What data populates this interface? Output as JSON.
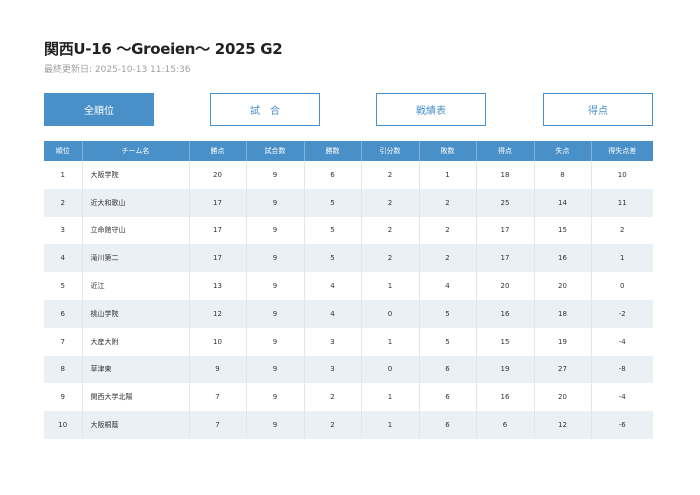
{
  "header": {
    "title": "関西U-16 〜Groeien〜 2025 G2",
    "updated": "最終更新日: 2025-10-13 11:15:36"
  },
  "tabs": [
    {
      "label": "全順位",
      "active": true
    },
    {
      "label": "試　合",
      "active": false
    },
    {
      "label": "戦績表",
      "active": false
    },
    {
      "label": "得点",
      "active": false
    }
  ],
  "table": {
    "columns": [
      "順位",
      "チーム名",
      "勝点",
      "試合数",
      "勝数",
      "引分数",
      "敗数",
      "得点",
      "失点",
      "得失点差"
    ],
    "rows": [
      [
        "1",
        "大阪学院",
        "20",
        "9",
        "6",
        "2",
        "1",
        "18",
        "8",
        "10"
      ],
      [
        "2",
        "近大和歌山",
        "17",
        "9",
        "5",
        "2",
        "2",
        "25",
        "14",
        "11"
      ],
      [
        "3",
        "立命館守山",
        "17",
        "9",
        "5",
        "2",
        "2",
        "17",
        "15",
        "2"
      ],
      [
        "4",
        "滝川第二",
        "17",
        "9",
        "5",
        "2",
        "2",
        "17",
        "16",
        "1"
      ],
      [
        "5",
        "近江",
        "13",
        "9",
        "4",
        "1",
        "4",
        "20",
        "20",
        "0"
      ],
      [
        "6",
        "桃山学院",
        "12",
        "9",
        "4",
        "0",
        "5",
        "16",
        "18",
        "-2"
      ],
      [
        "7",
        "大産大附",
        "10",
        "9",
        "3",
        "1",
        "5",
        "15",
        "19",
        "-4"
      ],
      [
        "8",
        "草津東",
        "9",
        "9",
        "3",
        "0",
        "6",
        "19",
        "27",
        "-8"
      ],
      [
        "9",
        "関西大学北陽",
        "7",
        "9",
        "2",
        "1",
        "6",
        "16",
        "20",
        "-4"
      ],
      [
        "10",
        "大阪桐蔭",
        "7",
        "9",
        "2",
        "1",
        "6",
        "6",
        "12",
        "-6"
      ]
    ]
  },
  "colors": {
    "accent": "#4a90c8",
    "row_stripe": "#ebf0f5"
  }
}
